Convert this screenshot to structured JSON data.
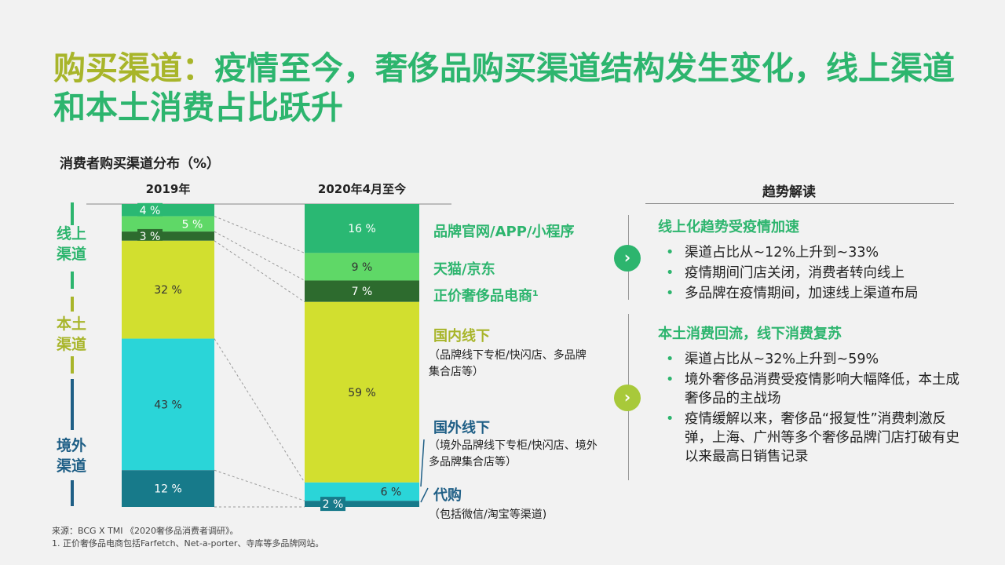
{
  "title": {
    "part1": "购买渠道：",
    "part2": "疫情至今，奢侈品购买渠道结构发生变化，线上渠道和本土消费占比跃升"
  },
  "chart_title": "消费者购买渠道分布（%）",
  "chart_data": {
    "type": "bar",
    "stacked": true,
    "categories": [
      "2019年",
      "2020年4月至今"
    ],
    "series": [
      {
        "name": "品牌官网/APP/小程序",
        "values": [
          4,
          16
        ],
        "color": "#2ab873"
      },
      {
        "name": "天猫/京东",
        "values": [
          5,
          9
        ],
        "color": "#5fd867"
      },
      {
        "name": "正价奢侈品电商¹",
        "values": [
          3,
          7
        ],
        "color": "#2d6b2e"
      },
      {
        "name": "国内线下",
        "values": [
          32,
          59
        ],
        "color": "#d2df2f"
      },
      {
        "name": "国外线下",
        "values": [
          43,
          6
        ],
        "color": "#2ad5d8"
      },
      {
        "name": "代购",
        "values": [
          12,
          2
        ],
        "color": "#177a8a"
      }
    ],
    "data_labels": [
      [
        "4 %",
        "5 %",
        "3 %",
        "32 %",
        "43 %",
        "12 %"
      ],
      [
        "16 %",
        "9 %",
        "7 %",
        "59 %",
        "6 %",
        "2 %"
      ]
    ],
    "label_colors": [
      [
        "#ffffff",
        "#ffffff",
        "#ffffff",
        "#333333",
        "#333333",
        "#ffffff"
      ],
      [
        "#ffffff",
        "#333333",
        "#ffffff",
        "#333333",
        "#333333",
        "#ffffff"
      ]
    ],
    "groups": [
      {
        "label": "线上渠道",
        "lines": [
          "线上",
          "渠道"
        ],
        "color": "#2db56e"
      },
      {
        "label": "本土渠道",
        "lines": [
          "本土",
          "渠道"
        ],
        "color": "#a8b52a"
      },
      {
        "label": "境外渠道",
        "lines": [
          "境外",
          "渠道"
        ],
        "color": "#1f5f86"
      }
    ]
  },
  "legend_labels": {
    "s1": "品牌官网/APP/小程序",
    "s2": "天猫/京东",
    "s3": "正价奢侈品电商¹",
    "s4": "国内线下",
    "s4_note": "（品牌线下专柜/快闪店、多品牌集合店等）",
    "s5": "国外线下",
    "s5_note": "（境外品牌线下专柜/快闪店、境外多品牌集合店等）",
    "s6": "代购",
    "s6_note": "（包括微信/淘宝等渠道)"
  },
  "side_labels": {
    "online": [
      "线上",
      "渠道"
    ],
    "local": [
      "本土",
      "渠道"
    ],
    "overseas": [
      "境外",
      "渠道"
    ]
  },
  "insights": {
    "header": "趋势解读",
    "point1": {
      "title": "线上化趋势受疫情加速",
      "bullets": [
        "渠道占比从~12%上升到~33%",
        "疫情期间门店关闭，消费者转向线上",
        "多品牌在疫情期间，加速线上渠道布局"
      ],
      "icon": "chevron-right-icon",
      "color": "#2db56e"
    },
    "point2": {
      "title": "本土消费回流，线下消费复苏",
      "bullets": [
        "渠道占比从~32%上升到~59%",
        "境外奢侈品消费受疫情影响大幅降低，本土成奢侈品的主战场",
        "疫情缓解以来，奢侈品“报复性”消费刺激反弹，上海、广州等多个奢侈品牌门店打破有史以来最高日销售记录"
      ],
      "icon": "chevron-right-icon",
      "color": "#a8c93a"
    }
  },
  "footnotes": {
    "source": "来源：BCG X TMI 《2020奢侈品消费者调研》。",
    "note1": "1. 正价奢侈品电商包括Farfetch、Net-a-porter、寺库等多品牌网站。"
  }
}
